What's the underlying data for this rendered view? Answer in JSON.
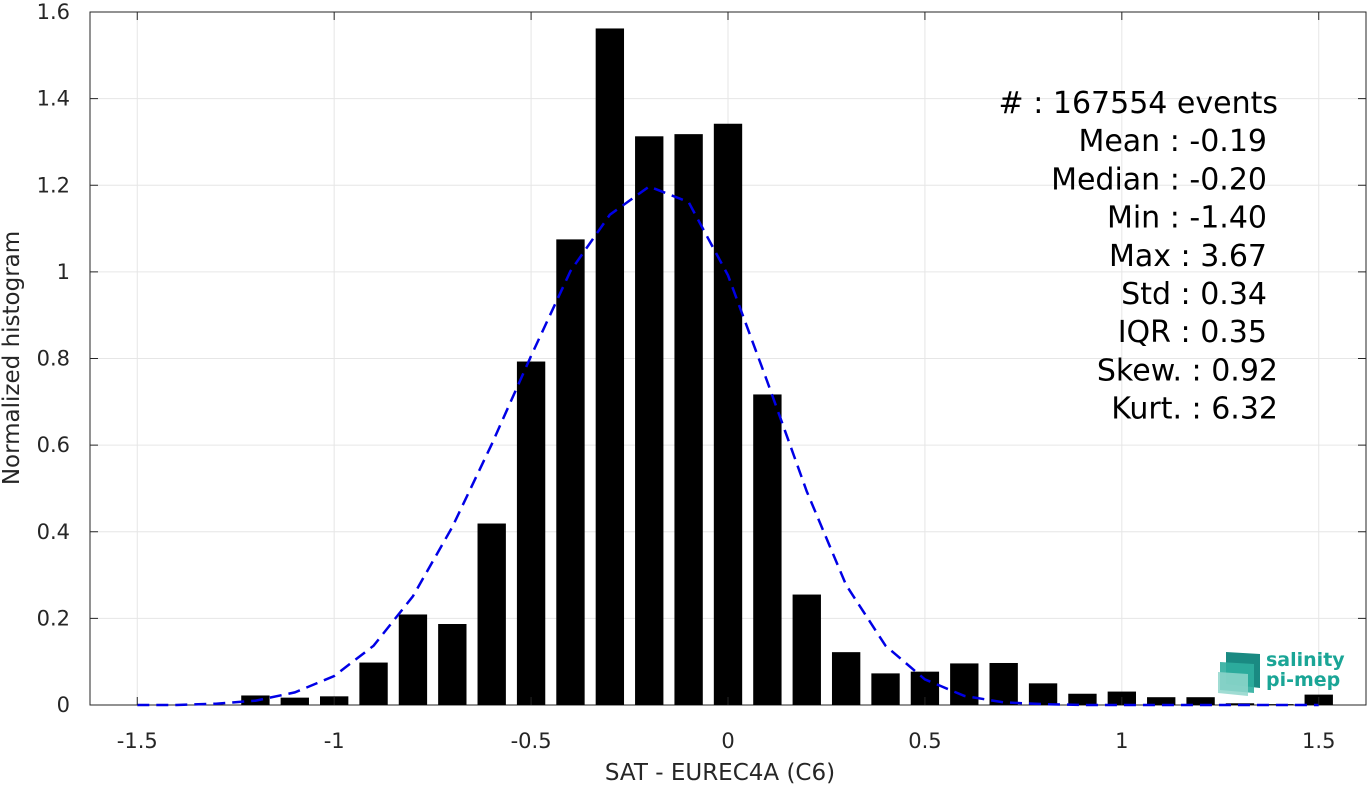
{
  "chart_data": {
    "type": "bar",
    "xlabel": "SAT - EUREC4A (C6)",
    "ylabel": "Normalized histogram",
    "xlim": [
      -1.62,
      1.62
    ],
    "ylim": [
      0,
      1.6
    ],
    "xticks": [
      -1.5,
      -1,
      -0.5,
      0,
      0.5,
      1,
      1.5
    ],
    "xtick_labels": [
      "-1.5",
      "-1",
      "-0.5",
      "0",
      "0.5",
      "1",
      "1.5"
    ],
    "yticks": [
      0,
      0.2,
      0.4,
      0.6,
      0.8,
      1.0,
      1.2,
      1.4,
      1.6
    ],
    "ytick_labels": [
      "0",
      "0.2",
      "0.4",
      "0.6",
      "0.8",
      "1",
      "1.2",
      "1.4",
      "1.6"
    ],
    "grid": true,
    "bar_color": "#000000",
    "curve_color": "#0000e6",
    "bin_width": 0.1,
    "bars": {
      "x": [
        -1.5,
        -1.4,
        -1.3,
        -1.2,
        -1.1,
        -1.0,
        -0.9,
        -0.8,
        -0.7,
        -0.6,
        -0.5,
        -0.4,
        -0.3,
        -0.2,
        -0.1,
        0.0,
        0.1,
        0.2,
        0.3,
        0.4,
        0.5,
        0.6,
        0.7,
        0.8,
        0.9,
        1.0,
        1.1,
        1.2,
        1.3,
        1.4,
        1.5
      ],
      "values": [
        0,
        0,
        0,
        0.022,
        0.017,
        0.02,
        0.098,
        0.209,
        0.187,
        0.419,
        0.793,
        1.075,
        1.562,
        1.313,
        1.318,
        1.342,
        0.717,
        0.255,
        0.122,
        0.073,
        0.077,
        0.096,
        0.097,
        0.05,
        0.026,
        0.031,
        0.018,
        0.018,
        0.004,
        0.002,
        0.024
      ]
    },
    "fit_curve": {
      "style": "dashed",
      "x": [
        -1.5,
        -1.4,
        -1.3,
        -1.2,
        -1.1,
        -1.0,
        -0.9,
        -0.8,
        -0.7,
        -0.6,
        -0.5,
        -0.4,
        -0.3,
        -0.2,
        -0.1,
        0.0,
        0.1,
        0.2,
        0.3,
        0.4,
        0.5,
        0.6,
        0.7,
        0.8,
        0.9,
        1.0,
        1.1,
        1.2,
        1.3,
        1.4,
        1.5
      ],
      "y": [
        0.0,
        0.0,
        0.003,
        0.01,
        0.029,
        0.067,
        0.137,
        0.251,
        0.411,
        0.602,
        0.806,
        1.002,
        1.132,
        1.197,
        1.161,
        0.992,
        0.746,
        0.493,
        0.277,
        0.137,
        0.059,
        0.021,
        0.006,
        0.002,
        0.0,
        0.0,
        0.0,
        0.0,
        0.0,
        0.0,
        0.0
      ]
    },
    "stats": [
      {
        "label": "#  : 167554 events"
      },
      {
        "label": "Mean : -0.19"
      },
      {
        "label": "Median : -0.20"
      },
      {
        "label": "Min : -1.40"
      },
      {
        "label": "Max : 3.67"
      },
      {
        "label": "Std : 0.34"
      },
      {
        "label": "IQR : 0.35"
      },
      {
        "label": "Skew. : 0.92"
      },
      {
        "label": "Kurt. : 6.32"
      }
    ]
  },
  "logo": {
    "line1": "salinity",
    "line2": "pi-mep"
  }
}
